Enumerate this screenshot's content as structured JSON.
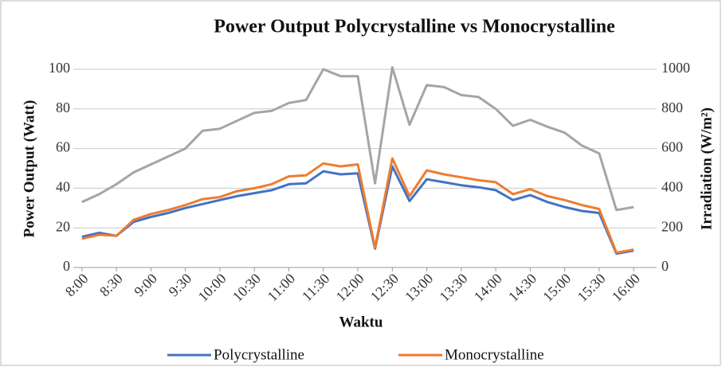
{
  "chart_data": {
    "type": "line",
    "title": "Power Output Polycrystalline vs Monocrystalline",
    "x_label": "Waktu",
    "y_label": "Power Output (Watt)",
    "y2_label": "Irradiation (W/m²)",
    "categories": [
      "8:00",
      null,
      "8:30",
      null,
      "9:00",
      null,
      "9:30",
      null,
      "10:00",
      null,
      "10:30",
      null,
      "11:00",
      null,
      "11:30",
      null,
      "12:00",
      null,
      "12:30",
      null,
      "13:00",
      null,
      "13:30",
      null,
      "14:00",
      null,
      "14:30",
      null,
      "15:00",
      null,
      "15:30",
      null,
      "16:00"
    ],
    "series": [
      {
        "color": "#a5a5a5",
        "axis": "y2",
        "values": [
          330,
          370,
          420,
          480,
          520,
          560,
          600,
          690,
          700,
          740,
          780,
          790,
          830,
          845,
          1000,
          965,
          965,
          425,
          1010,
          720,
          920,
          910,
          870,
          860,
          800,
          715,
          745,
          710,
          680,
          615,
          575,
          290,
          305
        ]
      },
      {
        "name": "Polycrystalline",
        "color": "#4472c4",
        "values": [
          15.5,
          17.5,
          16,
          23,
          25.5,
          27.5,
          30,
          32,
          34,
          36,
          37.5,
          39,
          42,
          42.5,
          48.5,
          47,
          47.5,
          9.5,
          51,
          33.5,
          44.5,
          43,
          41.5,
          40.5,
          39,
          34,
          36.5,
          33,
          30.5,
          28.5,
          27.5,
          7,
          8.5
        ]
      },
      {
        "name": "Monocrystalline",
        "color": "#ed7d31",
        "values": [
          14.5,
          16.5,
          16,
          24,
          27,
          29,
          31.5,
          34.5,
          35.5,
          38.5,
          40,
          42,
          46,
          46.5,
          52.5,
          51,
          52,
          10,
          55,
          36,
          49,
          47,
          45.5,
          44,
          43,
          37,
          39.5,
          36,
          34,
          31.5,
          29.5,
          7.5,
          9
        ]
      }
    ],
    "ylim": [
      0,
      100
    ],
    "yticks": [
      0,
      20,
      40,
      60,
      80,
      100
    ],
    "y2lim": [
      0,
      1000
    ],
    "y2ticks": [
      0,
      200,
      400,
      600,
      800,
      1000
    ],
    "grid": true
  }
}
